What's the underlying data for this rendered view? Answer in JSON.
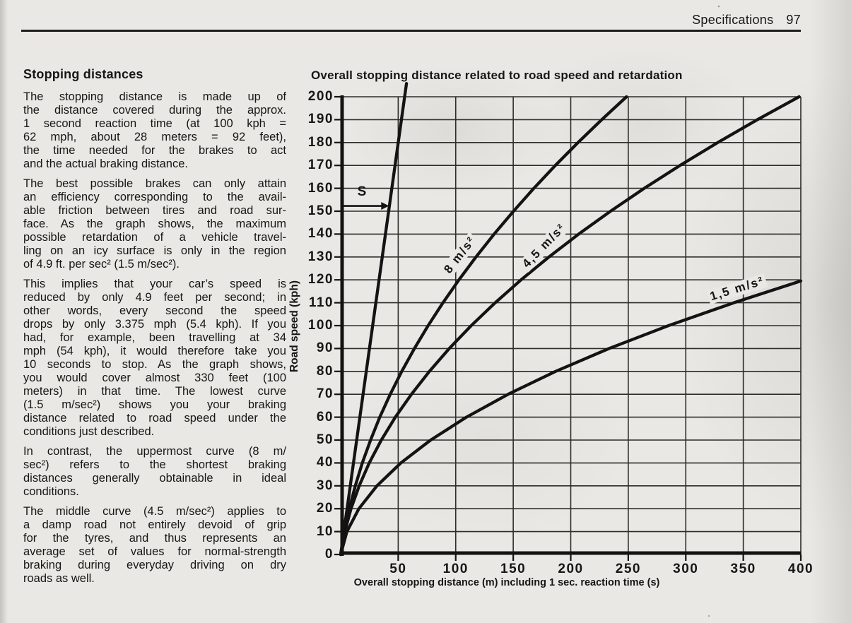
{
  "page": {
    "header": {
      "section": "Specifications",
      "page_number": "97"
    },
    "article": {
      "heading": "Stopping distances",
      "paragraphs": [
        {
          "lines": [
            "The stopping distance is made up of",
            "the distance covered during the approx.",
            "1 second reaction time (at 100 kph =",
            "62 mph, about 28 meters = 92 feet),",
            "the time needed for the brakes to act",
            "and the actual braking distance."
          ]
        },
        {
          "lines": [
            "The best possible brakes can only attain",
            "an efficiency corresponding to the avail-",
            "able friction between tires and road sur-",
            "face. As the graph shows, the maximum",
            "possible retardation of a vehicle travel-",
            "ling on an icy surface is only in the region",
            "of 4.9 ft. per sec² (1.5 m/sec²)."
          ]
        },
        {
          "lines": [
            "This implies that your car’s speed is",
            "reduced by only 4.9 feet per second; in",
            "other words, every second the speed",
            "drops by only 3.375 mph (5.4 kph). If you",
            "had, for example, been travelling at 34",
            "mph (54 kph), it would therefore take you",
            "10 seconds to stop. As the graph shows,",
            "you would cover almost 330 feet (100",
            "meters) in that time. The lowest curve",
            "(1.5 m/sec²) shows you your braking",
            "distance related to road speed under the",
            "conditions just described."
          ]
        },
        {
          "lines": [
            "In contrast, the uppermost curve (8 m/",
            "sec²) refers to the shortest braking",
            "distances generally obtainable in ideal",
            "conditions."
          ]
        },
        {
          "lines": [
            "The middle curve (4.5 m/sec²) applies to",
            "a damp road not entirely devoid of grip",
            "for the tyres, and thus represents an",
            "average set of values for normal-strength",
            "braking during everyday driving on dry",
            "roads as well."
          ]
        }
      ]
    }
  },
  "colors": {
    "ink": "#161616",
    "paper": "#eae8e4"
  },
  "chart_data": {
    "type": "line",
    "title": "Overall stopping distance related to road speed and retardation",
    "xlabel": "Overall stopping distance (m) including 1 sec. reaction time (s)",
    "ylabel": "Road speed (kph)",
    "xlim": [
      0,
      400
    ],
    "ylim": [
      0,
      200
    ],
    "x_ticks": [
      50,
      100,
      150,
      200,
      250,
      300,
      350,
      400
    ],
    "y_ticks": [
      0,
      10,
      20,
      30,
      40,
      50,
      60,
      70,
      80,
      90,
      100,
      110,
      120,
      130,
      140,
      150,
      160,
      170,
      180,
      190,
      200
    ],
    "grid": "on",
    "series": [
      {
        "name": "retardation-8",
        "label": "8 m/s²",
        "retardation_m_per_s2": 8,
        "label_pos": {
          "x_m": 104,
          "v_kph": 131,
          "angle_deg": -52
        },
        "points": [
          [
            0,
            0
          ],
          [
            3.3,
            10
          ],
          [
            7.5,
            20
          ],
          [
            12.7,
            30
          ],
          [
            18.8,
            40
          ],
          [
            26,
            50
          ],
          [
            34,
            60
          ],
          [
            43.1,
            70
          ],
          [
            53.1,
            80
          ],
          [
            64.1,
            90
          ],
          [
            76,
            100
          ],
          [
            88.9,
            110
          ],
          [
            102.8,
            120
          ],
          [
            117.6,
            130
          ],
          [
            133.4,
            140
          ],
          [
            150.2,
            150
          ],
          [
            167.9,
            160
          ],
          [
            186.6,
            170
          ],
          [
            206.3,
            180
          ],
          [
            226.9,
            190
          ],
          [
            248.5,
            200
          ]
        ]
      },
      {
        "name": "retardation-4-5",
        "label": "4,5 m/s²",
        "retardation_m_per_s2": 4.5,
        "label_pos": {
          "x_m": 177,
          "v_kph": 135,
          "angle_deg": -46
        },
        "points": [
          [
            0,
            0
          ],
          [
            3.6,
            10
          ],
          [
            9,
            20
          ],
          [
            16.1,
            30
          ],
          [
            24.8,
            40
          ],
          [
            35.3,
            50
          ],
          [
            47.5,
            60
          ],
          [
            61.5,
            70
          ],
          [
            77.1,
            80
          ],
          [
            94.4,
            90
          ],
          [
            113.5,
            100
          ],
          [
            134.3,
            110
          ],
          [
            156.8,
            120
          ],
          [
            181,
            130
          ],
          [
            206.9,
            140
          ],
          [
            234.6,
            150
          ],
          [
            263.9,
            160
          ],
          [
            295,
            170
          ],
          [
            327.8,
            180
          ],
          [
            362.3,
            190
          ],
          [
            398.5,
            200
          ]
        ]
      },
      {
        "name": "retardation-1-5",
        "label": "1,5 m/s²",
        "retardation_m_per_s2": 1.5,
        "label_pos": {
          "x_m": 345,
          "v_kph": 116,
          "angle_deg": -17
        },
        "points": [
          [
            0,
            0
          ],
          [
            5.4,
            10
          ],
          [
            15.8,
            20
          ],
          [
            31.5,
            30
          ],
          [
            52.3,
            40
          ],
          [
            78.2,
            50
          ],
          [
            109.3,
            60
          ],
          [
            145.5,
            70
          ],
          [
            186.8,
            80
          ],
          [
            233.3,
            90
          ],
          [
            285,
            100
          ],
          [
            341.8,
            110
          ],
          [
            400,
            119.5
          ]
        ]
      },
      {
        "name": "reaction-distance",
        "points": [
          [
            0,
            0
          ],
          [
            57.2,
            205.8
          ]
        ]
      }
    ],
    "annotation": {
      "label": "S",
      "speed_kph": 152.3,
      "arrow_from_m": 0,
      "arrow_to_m": 42,
      "label_x_m": 18.4,
      "label_v_kph": 158.3
    }
  }
}
